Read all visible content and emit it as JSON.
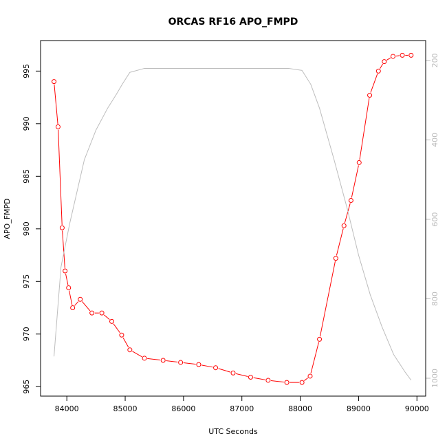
{
  "chart_data": {
    "type": "line",
    "title": "ORCAS RF16 APO_FMPD",
    "xlabel": "UTC Seconds",
    "ylabel": "APO_FMPD",
    "xlim": [
      83550,
      90150
    ],
    "ylim": [
      964.1,
      997.9
    ],
    "y2lim": [
      1045,
      150
    ],
    "x_ticks": [
      84000,
      85000,
      86000,
      87000,
      88000,
      89000,
      90000
    ],
    "y_ticks": [
      965,
      970,
      975,
      980,
      985,
      990,
      995
    ],
    "y2_ticks": [
      200,
      400,
      600,
      800,
      1000
    ],
    "grid": false,
    "series": [
      {
        "color": "#ff0000",
        "marker": "open-circle",
        "axis": "left",
        "x": [
          83780,
          83850,
          83920,
          83970,
          84030,
          84100,
          84230,
          84430,
          84600,
          84770,
          84940,
          85080,
          85330,
          85650,
          85950,
          86260,
          86550,
          86850,
          87150,
          87450,
          87770,
          88030,
          88170,
          88330,
          88610,
          88750,
          88870,
          89010,
          89190,
          89340,
          89440,
          89590,
          89750,
          89900
        ],
        "y": [
          994.0,
          989.7,
          980.1,
          976.0,
          974.4,
          972.5,
          973.3,
          972.0,
          972.0,
          971.2,
          969.9,
          968.5,
          967.7,
          967.5,
          967.3,
          967.1,
          966.8,
          966.3,
          965.9,
          965.6,
          965.4,
          965.4,
          966.0,
          969.5,
          977.2,
          980.3,
          982.7,
          986.3,
          992.7,
          995.0,
          995.9,
          996.4,
          996.5,
          996.5
        ]
      },
      {
        "color": "#bdbdbd",
        "marker": "none",
        "axis": "right",
        "x": [
          83780,
          83900,
          84050,
          84300,
          84500,
          84700,
          84850,
          84950,
          85080,
          85330,
          86000,
          87000,
          87800,
          88030,
          88180,
          88330,
          88580,
          88800,
          89000,
          89200,
          89400,
          89600,
          89800,
          89900
        ],
        "y": [
          945,
          720,
          610,
          450,
          375,
          320,
          285,
          260,
          230,
          220,
          220,
          220,
          220,
          225,
          260,
          320,
          450,
          570,
          690,
          790,
          870,
          940,
          985,
          1005
        ]
      }
    ]
  }
}
